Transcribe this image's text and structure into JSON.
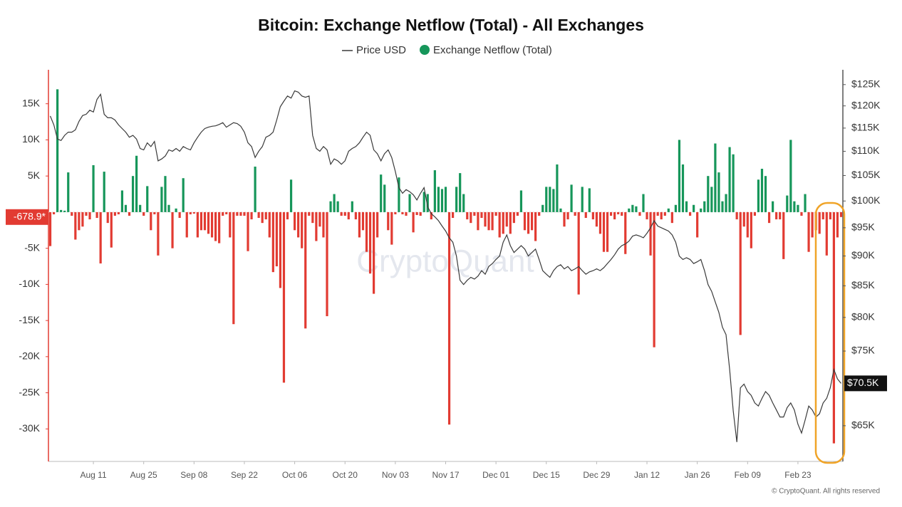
{
  "chart_data": {
    "type": "bar",
    "title": "Bitcoin: Exchange Netflow (Total) - All Exchanges",
    "watermark": "CryptoQuant",
    "footer": "© CryptoQuant. All rights reserved",
    "categories": [
      null,
      null,
      null,
      null,
      null,
      null,
      null,
      null,
      null,
      null,
      null,
      null,
      "Aug 11",
      null,
      null,
      null,
      null,
      null,
      null,
      null,
      null,
      null,
      null,
      null,
      null,
      null,
      "Aug 25",
      null,
      null,
      null,
      null,
      null,
      null,
      null,
      null,
      null,
      null,
      null,
      null,
      null,
      "Sep 08",
      null,
      null,
      null,
      null,
      null,
      null,
      null,
      null,
      null,
      null,
      null,
      null,
      null,
      "Sep 22",
      null,
      null,
      null,
      null,
      null,
      null,
      null,
      null,
      null,
      null,
      null,
      null,
      null,
      "Oct 06",
      null,
      null,
      null,
      null,
      null,
      null,
      null,
      null,
      null,
      null,
      null,
      null,
      null,
      "Oct 20",
      null,
      null,
      null,
      null,
      null,
      null,
      null,
      null,
      null,
      null,
      null,
      null,
      null,
      "Nov 03",
      null,
      null,
      null,
      null,
      null,
      null,
      null,
      null,
      null,
      null,
      null,
      null,
      null,
      "Nov 17",
      null,
      null,
      null,
      null,
      null,
      null,
      null,
      null,
      null,
      null,
      null,
      null,
      null,
      "Dec 01",
      null,
      null,
      null,
      null,
      null,
      null,
      null,
      null,
      null,
      null,
      null,
      null,
      null,
      "Dec 15",
      null,
      null,
      null,
      null,
      null,
      null,
      null,
      null,
      null,
      null,
      null,
      null,
      null,
      "Dec 29",
      null,
      null,
      null,
      null,
      null,
      null,
      null,
      null,
      null,
      null,
      null,
      null,
      null,
      "Jan 12",
      null,
      null,
      null,
      null,
      null,
      null,
      null,
      null,
      null,
      null,
      null,
      null,
      null,
      "Jan 26",
      null,
      null,
      null,
      null,
      null,
      null,
      null,
      null,
      null,
      null,
      null,
      null,
      null,
      "Feb 09",
      null,
      null,
      null,
      null,
      null,
      null,
      null,
      null,
      null,
      null,
      null,
      null,
      null,
      "Feb 23",
      null,
      null,
      null,
      null,
      null,
      null,
      null,
      null,
      null,
      null,
      null,
      null
    ],
    "series": [
      {
        "name": "Price USD",
        "type": "line",
        "axis": "y2",
        "color": "#3a3a3a",
        "values": [
          117700,
          115700,
          112600,
          112300,
          113400,
          114100,
          114100,
          114600,
          116500,
          117800,
          118100,
          119000,
          118600,
          121500,
          122700,
          118100,
          117300,
          117300,
          116800,
          115700,
          114900,
          114100,
          113000,
          113400,
          112600,
          110600,
          110300,
          111800,
          111000,
          112100,
          108000,
          108400,
          109000,
          110300,
          110000,
          110600,
          110000,
          111000,
          110600,
          110300,
          111800,
          113000,
          114100,
          114900,
          115200,
          115400,
          115500,
          115800,
          116200,
          115200,
          115700,
          116200,
          116000,
          115400,
          114100,
          111800,
          111000,
          108700,
          110000,
          111000,
          113000,
          113400,
          114100,
          116800,
          119800,
          121100,
          122300,
          121800,
          123500,
          123200,
          122300,
          122000,
          122300,
          113400,
          110600,
          110000,
          111000,
          110300,
          107300,
          108400,
          108000,
          107300,
          108000,
          110000,
          110600,
          111000,
          111800,
          113000,
          114100,
          113400,
          110300,
          109500,
          108000,
          109500,
          110300,
          108700,
          105800,
          102600,
          101500,
          102200,
          101800,
          101200,
          100200,
          101500,
          102600,
          98900,
          97600,
          97000,
          96300,
          95300,
          94400,
          93200,
          92400,
          90000,
          85900,
          85200,
          85900,
          86400,
          86100,
          86600,
          87500,
          86900,
          88200,
          88700,
          89400,
          90000,
          92400,
          93700,
          91800,
          90600,
          91200,
          91800,
          91200,
          90000,
          90600,
          91200,
          89400,
          87500,
          86900,
          86400,
          87500,
          88200,
          88500,
          87800,
          88200,
          87500,
          87800,
          88200,
          87500,
          86900,
          87300,
          87500,
          87800,
          87500,
          88000,
          88700,
          89400,
          90200,
          91200,
          91800,
          92100,
          92600,
          93500,
          93700,
          93500,
          93200,
          94000,
          95000,
          96300,
          95300,
          95000,
          94700,
          94400,
          93700,
          92400,
          90000,
          89400,
          89700,
          89400,
          88700,
          89000,
          89400,
          87500,
          85200,
          84100,
          82400,
          80800,
          78500,
          77400,
          72400,
          66900,
          63000,
          69900,
          70400,
          69400,
          68900,
          67900,
          67500,
          68500,
          69400,
          68900,
          67900,
          67000,
          66100,
          66100,
          67300,
          67900,
          67000,
          65200,
          64100,
          65700,
          67500,
          67000,
          66100,
          66500,
          67900,
          68500,
          69900,
          72400,
          71100,
          70500
        ],
        "value_labels": [
          null,
          null,
          null,
          null,
          null,
          null,
          null,
          null,
          null,
          null,
          null,
          null,
          null,
          null,
          null,
          null,
          null,
          null,
          null,
          null,
          null,
          null,
          null,
          null,
          null,
          null,
          null,
          null,
          null,
          null,
          null,
          null,
          null,
          null,
          null,
          null,
          null,
          null,
          null,
          null,
          null,
          null,
          null,
          null,
          null,
          null,
          null,
          null,
          null,
          null,
          null,
          null,
          null,
          null,
          null,
          null,
          null,
          null,
          null,
          null,
          null,
          null,
          null,
          null,
          null,
          null,
          null,
          null,
          null,
          null,
          null,
          null,
          null,
          null,
          null,
          null,
          null,
          null,
          null,
          null,
          null,
          null,
          null,
          null,
          null,
          null,
          null,
          null,
          null,
          null,
          null,
          null,
          null,
          null,
          null,
          null,
          null,
          null,
          null,
          null,
          null,
          null,
          null,
          null,
          null,
          null,
          null,
          null,
          null,
          null,
          null,
          null,
          null,
          null,
          null,
          null,
          null,
          null,
          null,
          null,
          null,
          null,
          null,
          null,
          null,
          null,
          null,
          null,
          null,
          null,
          null,
          null,
          null,
          null,
          null,
          null,
          null,
          null,
          null,
          null,
          null,
          null,
          null,
          null,
          null,
          null,
          null,
          null,
          null,
          null,
          null,
          null,
          null,
          null,
          null,
          null,
          null,
          null,
          null,
          null,
          null,
          null,
          null,
          null,
          null,
          null,
          null,
          null,
          null,
          null,
          null,
          null,
          null,
          null,
          null,
          null,
          null,
          null,
          null,
          null,
          null,
          null,
          null,
          null,
          null,
          null,
          null,
          null,
          null,
          null,
          null,
          null,
          null,
          null,
          null,
          null,
          null,
          null,
          null,
          null,
          null,
          null,
          null,
          null,
          null,
          null,
          null,
          null,
          null,
          null,
          null,
          null,
          null,
          null,
          null,
          null,
          null,
          null,
          null,
          null,
          "$70.5K"
        ]
      },
      {
        "name": "Exchange Netflow (Total)",
        "type": "bar",
        "color": "#16965a",
        "negative_color": "#e23b32",
        "values": [
          -4700,
          -300,
          17000,
          300,
          200,
          5500,
          -500,
          -3800,
          -2500,
          -2000,
          -500,
          -1000,
          6500,
          -800,
          -7100,
          5600,
          -1500,
          -4900,
          -500,
          -300,
          3000,
          1000,
          -500,
          5000,
          7800,
          1000,
          -500,
          3600,
          -2500,
          -300,
          -6000,
          3500,
          5000,
          1000,
          -5000,
          500,
          -800,
          4700,
          -3500,
          -300,
          -200,
          -3500,
          -2500,
          -2500,
          -3000,
          -3500,
          -4000,
          -4300,
          -500,
          -300,
          -3500,
          -15500,
          -500,
          -500,
          -500,
          -5400,
          -1000,
          6300,
          -800,
          -1500,
          -1000,
          -3500,
          -8300,
          -7500,
          -10500,
          -23600,
          -1000,
          4500,
          -2500,
          -3500,
          -5000,
          -16100,
          -500,
          -1500,
          -4000,
          -2000,
          -3500,
          -14400,
          1500,
          2500,
          1500,
          -500,
          -500,
          -1000,
          1500,
          -1000,
          -3500,
          -2500,
          -5500,
          -8500,
          -11300,
          -3500,
          5200,
          3800,
          -2500,
          -4500,
          -300,
          4800,
          -300,
          -500,
          2500,
          -2800,
          -400,
          -500,
          2800,
          2500,
          -1000,
          5800,
          3500,
          3200,
          3500,
          -29400,
          -800,
          3500,
          5400,
          2500,
          -1000,
          -1500,
          -500,
          -2500,
          -800,
          -2000,
          -2500,
          -2500,
          -500,
          -3500,
          -3000,
          -2000,
          -3000,
          -1500,
          -500,
          3000,
          -2500,
          -3000,
          -2500,
          -4000,
          -500,
          1000,
          3500,
          3500,
          3200,
          6600,
          500,
          -2000,
          -1000,
          3800,
          -500,
          -11400,
          3500,
          -800,
          3300,
          -1000,
          -2000,
          -3000,
          -5500,
          -5500,
          -500,
          -1000,
          -300,
          -500,
          -5800,
          500,
          1000,
          800,
          -500,
          2500,
          -1000,
          -6000,
          -18700,
          -500,
          -1000,
          -500,
          500,
          -1500,
          1000,
          10000,
          6600,
          1500,
          -500,
          1000,
          -3500,
          500,
          1500,
          5000,
          3500,
          9500,
          5500,
          1500,
          2500,
          9000,
          8000,
          -1000,
          -17000,
          -2000,
          -3500,
          -5000,
          -500,
          4500,
          6000,
          5000,
          -1500,
          1500,
          -1000,
          -1000,
          -6500,
          2300,
          10000,
          1500,
          1000,
          -500,
          2500,
          -5500,
          -3500,
          -2500,
          -3000,
          -1000,
          -6000,
          -1000,
          -32000,
          -3500,
          -678.9
        ],
        "value_labels": [
          null,
          null,
          null,
          null,
          null,
          null,
          null,
          null,
          null,
          null,
          null,
          null,
          null,
          null,
          null,
          null,
          null,
          null,
          null,
          null,
          null,
          null,
          null,
          null,
          null,
          null,
          null,
          null,
          null,
          null,
          null,
          null,
          null,
          null,
          null,
          null,
          null,
          null,
          null,
          null,
          null,
          null,
          null,
          null,
          null,
          null,
          null,
          null,
          null,
          null,
          null,
          null,
          null,
          null,
          null,
          null,
          null,
          null,
          null,
          null,
          null,
          null,
          null,
          null,
          null,
          null,
          null,
          null,
          null,
          null,
          null,
          null,
          null,
          null,
          null,
          null,
          null,
          null,
          null,
          null,
          null,
          null,
          null,
          null,
          null,
          null,
          null,
          null,
          null,
          null,
          null,
          null,
          null,
          null,
          null,
          null,
          null,
          null,
          null,
          null,
          null,
          null,
          null,
          null,
          null,
          null,
          null,
          null,
          null,
          null,
          null,
          null,
          null,
          null,
          null,
          null,
          null,
          null,
          null,
          null,
          null,
          null,
          null,
          null,
          null,
          null,
          null,
          null,
          null,
          null,
          null,
          null,
          null,
          null,
          null,
          null,
          null,
          null,
          null,
          null,
          null,
          null,
          null,
          null,
          null,
          null,
          null,
          null,
          null,
          null,
          null,
          null,
          null,
          null,
          null,
          null,
          null,
          null,
          null,
          null,
          null,
          null,
          null,
          null,
          null,
          null,
          null,
          null,
          null,
          null,
          null,
          null,
          null,
          null,
          null,
          null,
          null,
          null,
          null,
          null,
          null,
          null,
          null,
          null,
          null,
          null,
          null,
          null,
          null,
          null,
          null,
          null,
          null,
          null,
          null,
          null,
          null,
          null,
          null,
          null,
          null,
          null,
          null,
          null,
          null,
          null,
          null,
          null,
          null,
          null,
          null,
          null,
          null,
          null,
          null,
          null,
          null,
          null,
          null,
          null,
          "-678.9*"
        ]
      }
    ],
    "ylim": [
      -34500,
      19700
    ],
    "yticks": [
      {
        "value": 15000,
        "label": "15K"
      },
      {
        "value": 10000,
        "label": "10K"
      },
      {
        "value": 5000,
        "label": "5K"
      },
      {
        "value": -5000,
        "label": "-5K"
      },
      {
        "value": -10000,
        "label": "-10K"
      },
      {
        "value": -15000,
        "label": "-15K"
      },
      {
        "value": -20000,
        "label": "-20K"
      },
      {
        "value": -25000,
        "label": "-25K"
      },
      {
        "value": -30000,
        "label": "-30K"
      }
    ],
    "y2lim": [
      60700,
      128600
    ],
    "y2scale": "log",
    "y2ticks": [
      {
        "value": 125000,
        "label": "$125K"
      },
      {
        "value": 120000,
        "label": "$120K"
      },
      {
        "value": 115000,
        "label": "$115K"
      },
      {
        "value": 110000,
        "label": "$110K"
      },
      {
        "value": 105000,
        "label": "$105K"
      },
      {
        "value": 100000,
        "label": "$100K"
      },
      {
        "value": 95000,
        "label": "$95K"
      },
      {
        "value": 90000,
        "label": "$90K"
      },
      {
        "value": 85000,
        "label": "$85K"
      },
      {
        "value": 80000,
        "label": "$80K"
      },
      {
        "value": 75000,
        "label": "$75K"
      },
      {
        "value": 65000,
        "label": "$65K"
      }
    ],
    "grid": false
  }
}
